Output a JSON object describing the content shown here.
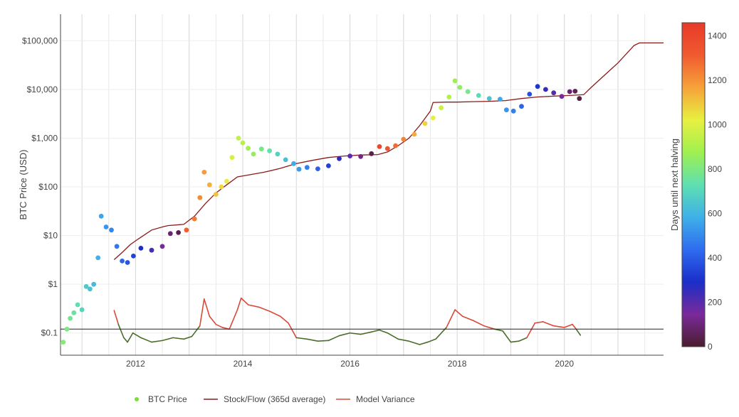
{
  "chart_data": {
    "type": "scatter",
    "title": "",
    "ylabel": "BTC Price (USD)",
    "xlabel": "",
    "y_scale": "log",
    "ylim": [
      0.035,
      350000
    ],
    "xlim": [
      2010.6,
      2021.85
    ],
    "x_ticks": [
      {
        "value": 2012,
        "label": "2012"
      },
      {
        "value": 2014,
        "label": "2014"
      },
      {
        "value": 2016,
        "label": "2016"
      },
      {
        "value": 2018,
        "label": "2018"
      },
      {
        "value": 2020,
        "label": "2020"
      }
    ],
    "y_ticks": [
      {
        "value": 0.1,
        "label": "$0.1"
      },
      {
        "value": 1,
        "label": "$1"
      },
      {
        "value": 10,
        "label": "$10"
      },
      {
        "value": 100,
        "label": "$100"
      },
      {
        "value": 1000,
        "label": "$1,000"
      },
      {
        "value": 10000,
        "label": "$10,000"
      },
      {
        "value": 100000,
        "label": "$100,000"
      }
    ],
    "grid": true,
    "reference_line": {
      "y": 0.12
    },
    "colorbar": {
      "title": "Days until next halving",
      "range": [
        0,
        1460
      ],
      "ticks": [
        0,
        200,
        400,
        600,
        800,
        1000,
        1200,
        1400
      ],
      "colorscale": [
        "#4a1d2e",
        "#7a2a9a",
        "#1a2ec8",
        "#2f6cf0",
        "#3fb0e8",
        "#5fe0b0",
        "#9ff050",
        "#e8f040",
        "#f6a23a",
        "#f05a30",
        "#e83a28"
      ]
    },
    "halvings": [
      2012.9,
      2016.52,
      2020.36,
      2024.3
    ],
    "series": [
      {
        "name": "BTC Price",
        "kind": "markers",
        "x": [
          2010.58,
          2010.65,
          2010.72,
          2010.78,
          2010.85,
          2010.92,
          2011.0,
          2011.08,
          2011.15,
          2011.22,
          2011.3,
          2011.36,
          2011.45,
          2011.55,
          2011.65,
          2011.75,
          2011.85,
          2011.96,
          2012.1,
          2012.3,
          2012.5,
          2012.65,
          2012.8,
          2012.95,
          2013.1,
          2013.2,
          2013.28,
          2013.38,
          2013.5,
          2013.6,
          2013.7,
          2013.8,
          2013.92,
          2014.0,
          2014.1,
          2014.2,
          2014.35,
          2014.5,
          2014.65,
          2014.8,
          2014.95,
          2015.05,
          2015.2,
          2015.4,
          2015.6,
          2015.8,
          2016.0,
          2016.2,
          2016.4,
          2016.55,
          2016.7,
          2016.85,
          2017.0,
          2017.2,
          2017.4,
          2017.55,
          2017.7,
          2017.85,
          2017.96,
          2018.05,
          2018.2,
          2018.4,
          2018.6,
          2018.8,
          2018.92,
          2019.05,
          2019.2,
          2019.35,
          2019.5,
          2019.65,
          2019.8,
          2019.95,
          2020.1,
          2020.2,
          2020.28
        ],
        "y": [
          0.06,
          0.065,
          0.12,
          0.2,
          0.26,
          0.38,
          0.3,
          0.9,
          0.8,
          1.0,
          3.5,
          25.0,
          15.0,
          13.0,
          6.0,
          3.0,
          2.8,
          3.8,
          5.5,
          5.0,
          6.0,
          11.0,
          11.5,
          13.0,
          22.0,
          60.0,
          200.0,
          110.0,
          70.0,
          100.0,
          130.0,
          400.0,
          1000.0,
          800.0,
          620.0,
          470.0,
          600.0,
          550.0,
          470.0,
          360.0,
          300.0,
          230.0,
          250.0,
          235.0,
          270.0,
          380.0,
          430.0,
          420.0,
          480.0,
          670.0,
          610.0,
          700.0,
          950.0,
          1200.0,
          2000.0,
          2600.0,
          4200.0,
          7000.0,
          15000.0,
          11000.0,
          9000.0,
          7500.0,
          6500.0,
          6300.0,
          3800.0,
          3600.0,
          4500.0,
          8000.0,
          11500.0,
          10000.0,
          8500.0,
          7200.0,
          9000.0,
          9200.0,
          6500.0
        ]
      },
      {
        "name": "Stock/Flow (365d average)",
        "kind": "line",
        "color": "#8b1a1a",
        "x": [
          2011.6,
          2011.75,
          2011.9,
          2012.05,
          2012.3,
          2012.5,
          2012.6,
          2012.9,
          2013.1,
          2013.3,
          2013.5,
          2013.7,
          2013.9,
          2014.1,
          2014.4,
          2014.7,
          2015.0,
          2015.3,
          2015.6,
          2015.9,
          2016.2,
          2016.52,
          2016.7,
          2016.9,
          2017.1,
          2017.3,
          2017.5,
          2017.55,
          2017.8,
          2018.0,
          2018.3,
          2018.6,
          2018.9,
          2019.2,
          2019.5,
          2019.8,
          2020.1,
          2020.36,
          2020.5,
          2020.8,
          2021.0,
          2021.3,
          2021.4,
          2021.85
        ],
        "y": [
          3.2,
          4.5,
          6.5,
          8.5,
          13.0,
          15.0,
          16.0,
          17.0,
          25.0,
          45.0,
          75.0,
          110.0,
          160.0,
          175.0,
          200.0,
          240.0,
          300.0,
          350.0,
          400.0,
          430.0,
          450.0,
          460.0,
          520.0,
          700.0,
          1000.0,
          1800.0,
          3600.0,
          5400.0,
          5500.0,
          5500.0,
          5600.0,
          5700.0,
          5900.0,
          6500.0,
          7000.0,
          7300.0,
          7500.0,
          7800.0,
          11000.0,
          22000.0,
          35000.0,
          80000.0,
          90000.0,
          90000.0
        ]
      },
      {
        "name": "Model Variance",
        "kind": "line",
        "color": "#d94a3a",
        "below_color": "#4a6e2a",
        "x": [
          2011.6,
          2011.68,
          2011.78,
          2011.85,
          2011.95,
          2012.1,
          2012.3,
          2012.5,
          2012.7,
          2012.9,
          2013.05,
          2013.2,
          2013.28,
          2013.38,
          2013.5,
          2013.62,
          2013.75,
          2013.9,
          2013.97,
          2014.1,
          2014.3,
          2014.5,
          2014.7,
          2014.85,
          2015.0,
          2015.2,
          2015.4,
          2015.6,
          2015.8,
          2016.0,
          2016.2,
          2016.4,
          2016.55,
          2016.7,
          2016.9,
          2017.1,
          2017.3,
          2017.45,
          2017.6,
          2017.8,
          2017.96,
          2018.1,
          2018.3,
          2018.5,
          2018.7,
          2018.85,
          2019.0,
          2019.15,
          2019.3,
          2019.45,
          2019.6,
          2019.8,
          2020.0,
          2020.15,
          2020.22,
          2020.3
        ],
        "y": [
          0.29,
          0.15,
          0.08,
          0.065,
          0.1,
          0.08,
          0.065,
          0.07,
          0.08,
          0.075,
          0.085,
          0.14,
          0.5,
          0.22,
          0.15,
          0.13,
          0.12,
          0.3,
          0.52,
          0.38,
          0.34,
          0.28,
          0.22,
          0.16,
          0.08,
          0.075,
          0.068,
          0.07,
          0.088,
          0.1,
          0.094,
          0.105,
          0.115,
          0.1,
          0.075,
          0.068,
          0.058,
          0.065,
          0.075,
          0.13,
          0.3,
          0.22,
          0.18,
          0.14,
          0.12,
          0.11,
          0.065,
          0.068,
          0.08,
          0.16,
          0.17,
          0.14,
          0.13,
          0.15,
          0.12,
          0.09
        ]
      }
    ],
    "legend": {
      "placement": "bottom",
      "entries": [
        {
          "label": "BTC Price",
          "color": "#7ddc3a",
          "kind": "marker"
        },
        {
          "label": "Stock/Flow (365d average)",
          "color": "#8b1a1a",
          "kind": "line"
        },
        {
          "label": "Model Variance",
          "color": "#d94a3a",
          "kind": "line"
        }
      ]
    }
  }
}
